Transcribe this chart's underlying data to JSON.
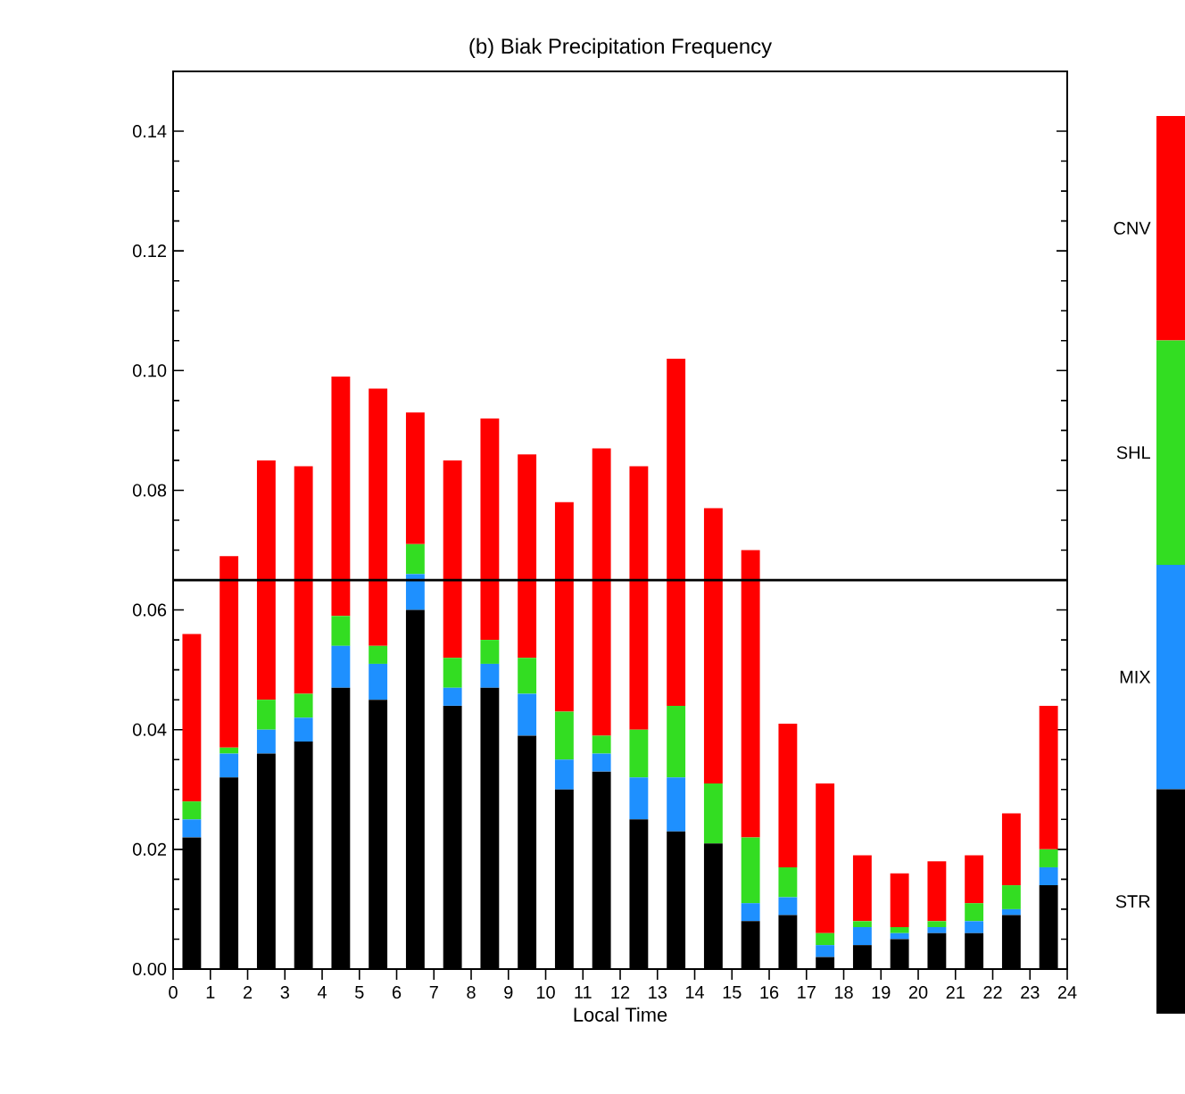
{
  "chart_data": {
    "type": "bar",
    "stacked": true,
    "title": "(b) Biak Precipitation Frequency",
    "xlabel": "Local Time",
    "x": [
      0.5,
      1.5,
      2.5,
      3.5,
      4.5,
      5.5,
      6.5,
      7.5,
      8.5,
      9.5,
      10.5,
      11.5,
      12.5,
      13.5,
      14.5,
      15.5,
      16.5,
      17.5,
      18.5,
      19.5,
      20.5,
      21.5,
      22.5,
      23.5
    ],
    "xlim": [
      0,
      24
    ],
    "xticks": [
      0,
      1,
      2,
      3,
      4,
      5,
      6,
      7,
      8,
      9,
      10,
      11,
      12,
      13,
      14,
      15,
      16,
      17,
      18,
      19,
      20,
      21,
      22,
      23,
      24
    ],
    "ylim": [
      0,
      0.15
    ],
    "yticks": [
      {
        "value": 0,
        "label": "0.00"
      },
      {
        "value": 0.02,
        "label": "0.02"
      },
      {
        "value": 0.04,
        "label": "0.04"
      },
      {
        "value": 0.06,
        "label": "0.06"
      },
      {
        "value": 0.08,
        "label": "0.08"
      },
      {
        "value": 0.1,
        "label": "0.10"
      },
      {
        "value": 0.12,
        "label": "0.12"
      },
      {
        "value": 0.14,
        "label": "0.14"
      }
    ],
    "tick_labels": "xy",
    "legend": "right",
    "ref_lines": [
      {
        "axis": "y",
        "value": 0.065,
        "color": "#000000"
      }
    ],
    "series": [
      {
        "name": "STR",
        "color": "#000000",
        "values": [
          0.022,
          0.032,
          0.036,
          0.038,
          0.047,
          0.045,
          0.06,
          0.044,
          0.047,
          0.039,
          0.03,
          0.033,
          0.025,
          0.023,
          0.021,
          0.008,
          0.009,
          0.002,
          0.004,
          0.005,
          0.006,
          0.006,
          0.009,
          0.014
        ]
      },
      {
        "name": "MIX",
        "color": "#1e90ff",
        "values": [
          0.003,
          0.004,
          0.004,
          0.004,
          0.007,
          0.006,
          0.006,
          0.003,
          0.004,
          0.007,
          0.005,
          0.003,
          0.007,
          0.009,
          0.0,
          0.003,
          0.003,
          0.002,
          0.003,
          0.001,
          0.001,
          0.002,
          0.001,
          0.003
        ]
      },
      {
        "name": "SHL",
        "color": "#33dd22",
        "values": [
          0.003,
          0.001,
          0.005,
          0.004,
          0.005,
          0.003,
          0.005,
          0.005,
          0.004,
          0.006,
          0.008,
          0.003,
          0.008,
          0.012,
          0.01,
          0.011,
          0.005,
          0.002,
          0.001,
          0.001,
          0.001,
          0.003,
          0.004,
          0.003
        ]
      },
      {
        "name": "CNV",
        "color": "#ff0000",
        "values": [
          0.028,
          0.032,
          0.04,
          0.038,
          0.04,
          0.043,
          0.022,
          0.033,
          0.037,
          0.034,
          0.035,
          0.048,
          0.044,
          0.058,
          0.046,
          0.048,
          0.024,
          0.025,
          0.011,
          0.009,
          0.01,
          0.008,
          0.012,
          0.024
        ]
      }
    ]
  }
}
